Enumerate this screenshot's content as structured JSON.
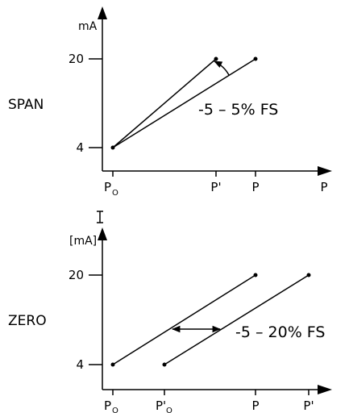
{
  "span_panel": {
    "y_unit": "mA",
    "y_tick_high": "20",
    "y_tick_low": "4",
    "mode_label": "SPAN",
    "x_tick_p0": "P",
    "x_tick_p0_sub": "O",
    "x_tick_pprime": "P'",
    "x_tick_p": "P",
    "x_axis_label": "P",
    "adjust_range": "-5 – 5% FS"
  },
  "zero_panel": {
    "y_symbol": "I",
    "y_unit": "[mA]",
    "y_tick_high": "20",
    "y_tick_low": "4",
    "mode_label": "ZERO",
    "x_tick_p0": "P",
    "x_tick_p0_sub": "O",
    "x_tick_p0prime": "P'",
    "x_tick_p0prime_sub": "O",
    "x_tick_p": "P",
    "x_tick_pprime": "P'",
    "adjust_range": "-5 – 20% FS"
  }
}
